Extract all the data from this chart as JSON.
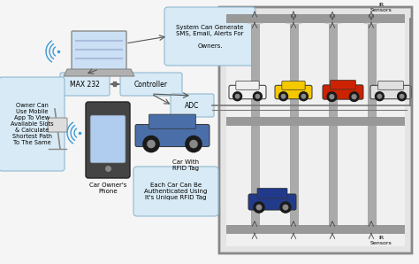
{
  "bg_color": "#f5f5f5",
  "sms_text": "System Can Generate\nSMS, Email, Alerts For\n\nOwners.",
  "max232_text": "MAX 232",
  "controller_text": "Controller",
  "adc_text": "ADC",
  "owner_text": "Owner Can\nUse Mobile\nApp To View\nAvailable Slots\n& Calculate\nShortest Path\nTo The Same",
  "phone_label": "Car Owner's\nPhone",
  "car_rfid_label": "Car With\nRFID Tag",
  "rfid_auth_text": "Each Car Can Be\nAuthenticated Using\nIt's Unique RFID Tag",
  "ir_label_top": "IR\nSensors",
  "ir_label_bot": "IR\nSensors",
  "box_fill": "#d8eaf5",
  "box_border": "#90b8d0",
  "arrow_color": "#555555",
  "lot_fill": "#e8e8e8",
  "lot_border": "#888888",
  "beam_color": "#999999",
  "col_color": "#aaaaaa",
  "white_car": "#f0f0f0",
  "yellow_car": "#f5c800",
  "red_car": "#cc2200",
  "silver_car": "#e0e0e0",
  "blue_car_rfid": "#4a6ea8",
  "blue_car_lot": "#223a8a",
  "wifi_color": "#3a9ad4",
  "antenna_color": "#999999"
}
